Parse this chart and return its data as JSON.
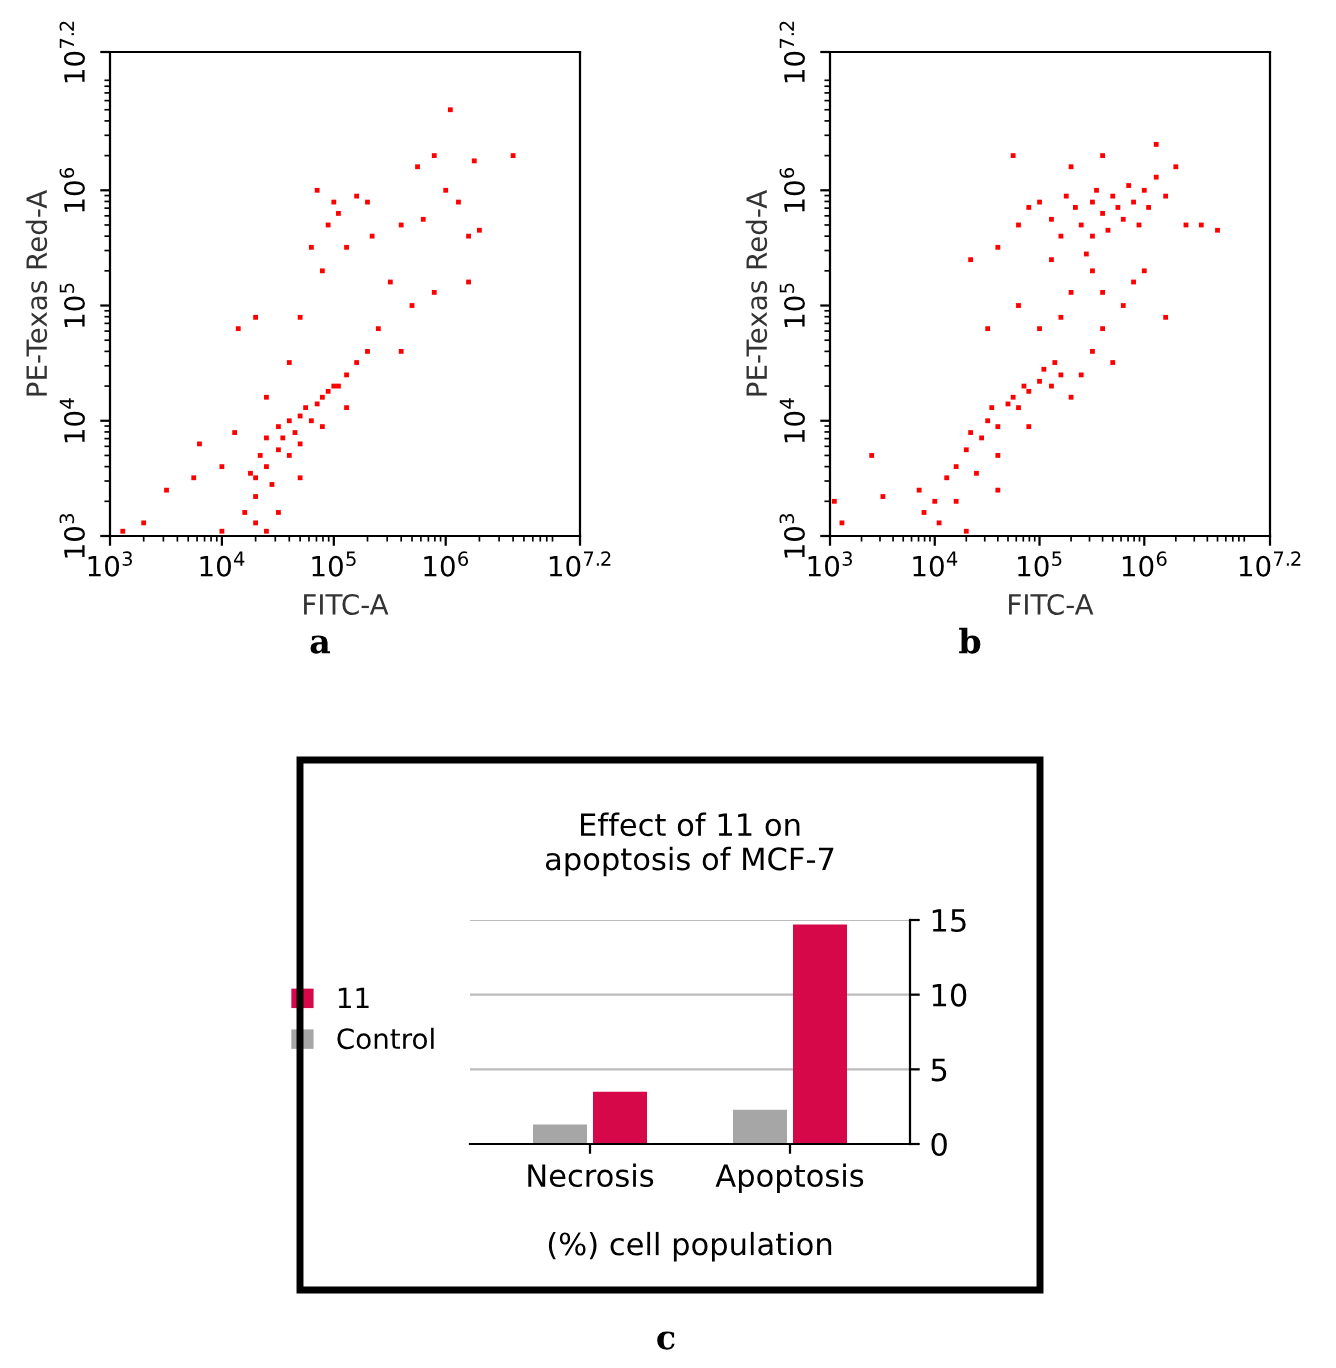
{
  "chart_data": [
    {
      "type": "scatter",
      "xlabel": "FITC-A",
      "ylabel": "PE-Texas Red-A",
      "log": "xy",
      "marker": "square",
      "xlim": [
        1000,
        15848932
      ],
      "ylim": [
        1000,
        15848932
      ],
      "xticks": [
        {
          "value": 1000,
          "label": "10$^{3}$"
        },
        {
          "value": 10000,
          "label": "10$^{4}$"
        },
        {
          "value": 100000,
          "label": "10$^{5}$"
        },
        {
          "value": 1000000,
          "label": "10$^{6}$"
        },
        {
          "value": 15848932,
          "label": "10$^{7.2}$"
        }
      ],
      "yticks": [
        {
          "value": 1000,
          "label": "10$^{3}$"
        },
        {
          "value": 10000,
          "label": "10$^{4}$"
        },
        {
          "value": 100000,
          "label": "10$^{5}$"
        },
        {
          "value": 1000000,
          "label": "10$^{6}$"
        },
        {
          "value": 15848932,
          "label": "10$^{7.2}$"
        }
      ],
      "annotations": [
        "a"
      ],
      "series": [
        {
          "color": "#ff0000",
          "x": [
            20000,
            22000,
            25000,
            25000,
            32000,
            32000,
            35000,
            40000,
            45000,
            50000,
            56000,
            63000,
            71000,
            79000,
            89000,
            100000,
            110000,
            130000,
            28000,
            20000,
            18000,
            40000,
            50000,
            79000,
            130000,
            160000,
            200000,
            16000,
            20000,
            25000,
            32000,
            50000,
            10000,
            13000,
            25000,
            40000,
            2000,
            3200,
            5600,
            6300,
            1300,
            10000,
            14000,
            20000,
            50000,
            79000,
            63000,
            89000,
            110000,
            130000,
            160000,
            200000,
            400000,
            560000,
            790000,
            1000000,
            1100000,
            1300000,
            1800000,
            1600000,
            2000000,
            4000000,
            630000,
            320000,
            500000,
            250000,
            400000,
            100000,
            71000,
            790000,
            1600000,
            220000
          ],
          "values": [
            3200,
            5000,
            4000,
            7100,
            5600,
            8900,
            7100,
            10000,
            7900,
            11000,
            13000,
            10000,
            14000,
            16000,
            18000,
            20000,
            20000,
            25000,
            2800,
            2200,
            3500,
            5000,
            6300,
            8900,
            13000,
            32000,
            40000,
            1600,
            1300,
            1100,
            1600,
            3200,
            4000,
            7900,
            16000,
            32000,
            1300,
            2500,
            3200,
            6300,
            1100,
            1100,
            63000,
            79000,
            79000,
            200000,
            320000,
            500000,
            630000,
            320000,
            890000,
            790000,
            500000,
            1600000,
            2000000,
            1000000,
            5000000,
            790000,
            1800000,
            400000,
            450000,
            2000000,
            560000,
            160000,
            100000,
            63000,
            40000,
            790000,
            1000000,
            130000,
            160000,
            400000
          ]
        }
      ]
    },
    {
      "type": "scatter",
      "xlabel": "FITC-A",
      "ylabel": "PE-Texas Red-A",
      "log": "xy",
      "marker": "square",
      "xlim": [
        1000,
        15848932
      ],
      "ylim": [
        1000,
        15848932
      ],
      "xticks": [
        {
          "value": 1000,
          "label": "10$^{3}$"
        },
        {
          "value": 10000,
          "label": "10$^{4}$"
        },
        {
          "value": 100000,
          "label": "10$^{5}$"
        },
        {
          "value": 1000000,
          "label": "10$^{6}$"
        },
        {
          "value": 15848932,
          "label": "10$^{7.2}$"
        }
      ],
      "yticks": [
        {
          "value": 1000,
          "label": "10$^{3}$"
        },
        {
          "value": 10000,
          "label": "10$^{4}$"
        },
        {
          "value": 100000,
          "label": "10$^{5}$"
        },
        {
          "value": 1000000,
          "label": "10$^{6}$"
        },
        {
          "value": 15848932,
          "label": "10$^{7.2}$"
        }
      ],
      "annotations": [
        "b"
      ],
      "series": [
        {
          "color": "#ff0000",
          "x": [
            16000,
            20000,
            22000,
            28000,
            32000,
            35000,
            40000,
            50000,
            56000,
            63000,
            71000,
            79000,
            100000,
            110000,
            130000,
            140000,
            160000,
            13000,
            10000,
            7900,
            7100,
            11000,
            16000,
            25000,
            40000,
            79000,
            200000,
            250000,
            320000,
            400000,
            630000,
            790000,
            500000,
            2500,
            3200,
            1300,
            1100,
            20000,
            40000,
            100000,
            160000,
            32000,
            63000,
            200000,
            320000,
            22000,
            40000,
            1000000,
            1600000,
            400000,
            56000,
            63000,
            79000,
            100000,
            130000,
            160000,
            180000,
            220000,
            250000,
            320000,
            350000,
            400000,
            450000,
            500000,
            560000,
            630000,
            710000,
            790000,
            890000,
            1000000,
            1100000,
            1300000,
            1600000,
            2500000,
            3500000,
            5000000,
            1300000,
            400000,
            200000,
            280000,
            130000,
            2000000,
            320000
          ],
          "values": [
            4000,
            5600,
            7900,
            7100,
            10000,
            13000,
            8900,
            14000,
            16000,
            13000,
            20000,
            18000,
            22000,
            28000,
            20000,
            32000,
            25000,
            3200,
            2000,
            1600,
            2500,
            1300,
            2000,
            3500,
            5000,
            8900,
            16000,
            25000,
            40000,
            63000,
            100000,
            160000,
            32000,
            5000,
            2200,
            1300,
            2000,
            1100,
            2500,
            63000,
            79000,
            63000,
            100000,
            130000,
            200000,
            250000,
            320000,
            200000,
            79000,
            130000,
            2000000,
            500000,
            710000,
            790000,
            560000,
            400000,
            890000,
            710000,
            500000,
            790000,
            1000000,
            630000,
            450000,
            890000,
            710000,
            560000,
            1100000,
            790000,
            500000,
            1000000,
            710000,
            1300000,
            890000,
            500000,
            500000,
            450000,
            2500000,
            2000000,
            1600000,
            280000,
            250000,
            1600000,
            400000
          ]
        }
      ]
    },
    {
      "type": "bar",
      "title": "Effect of 11 on\napoptosis of MCF-7",
      "xlabel": "(%) cell population",
      "categories": [
        "Necrosis",
        "Apoptosis"
      ],
      "ylim": [
        0,
        15
      ],
      "yticks": [
        0,
        5,
        10,
        15
      ],
      "grid": "y",
      "legend": "left",
      "annotations": [
        "c"
      ],
      "series": [
        {
          "name": "Control",
          "color": "#a6a6a6",
          "values": [
            1.3,
            2.3
          ]
        },
        {
          "name": "11",
          "color": "#d6084a",
          "values": [
            3.5,
            14.7
          ]
        }
      ]
    }
  ]
}
